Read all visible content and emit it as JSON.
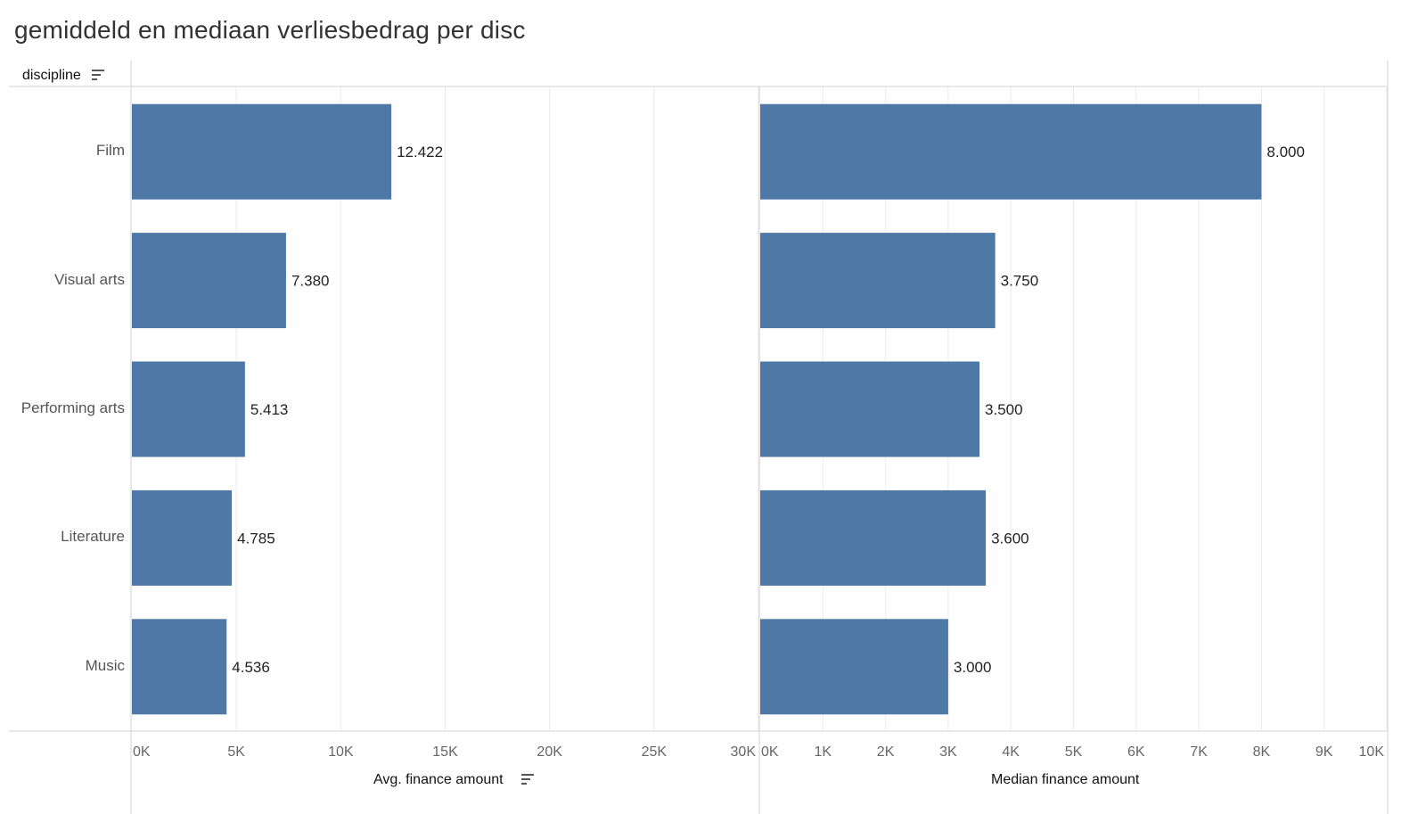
{
  "title": "gemiddeld en mediaan verliesbedrag per disc",
  "row_header": {
    "label": "discipline",
    "icon": "sort-icon"
  },
  "colors": {
    "bar": "#4e79a7",
    "gridline": "#ebebeb",
    "axis_line": "#d0d0d0",
    "tick_text": "#666666"
  },
  "chart_data": [
    {
      "type": "bar",
      "orientation": "horizontal",
      "categories": [
        "Film",
        "Visual arts",
        "Performing arts",
        "Literature",
        "Music"
      ],
      "values": [
        12422,
        7380,
        5413,
        4785,
        4536
      ],
      "value_labels": [
        "12.422",
        "7.380",
        "5.413",
        "4.785",
        "4.536"
      ],
      "xlabel": "Avg. finance amount",
      "xlabel_icon": "sort-icon",
      "xlim": [
        0,
        30000
      ],
      "ticks": [
        0,
        5000,
        10000,
        15000,
        20000,
        25000,
        30000
      ],
      "tick_labels": [
        "0K",
        "5K",
        "10K",
        "15K",
        "20K",
        "25K",
        "30K"
      ],
      "grid": true
    },
    {
      "type": "bar",
      "orientation": "horizontal",
      "categories": [
        "Film",
        "Visual arts",
        "Performing arts",
        "Literature",
        "Music"
      ],
      "values": [
        8000,
        3750,
        3500,
        3600,
        3000
      ],
      "value_labels": [
        "8.000",
        "3.750",
        "3.500",
        "3.600",
        "3.000"
      ],
      "xlabel": "Median finance amount",
      "xlim": [
        0,
        10000
      ],
      "ticks": [
        0,
        1000,
        2000,
        3000,
        4000,
        5000,
        6000,
        7000,
        8000,
        9000,
        10000
      ],
      "tick_labels": [
        "0K",
        "1K",
        "2K",
        "3K",
        "4K",
        "5K",
        "6K",
        "7K",
        "8K",
        "9K",
        "10K"
      ],
      "grid": true
    }
  ]
}
